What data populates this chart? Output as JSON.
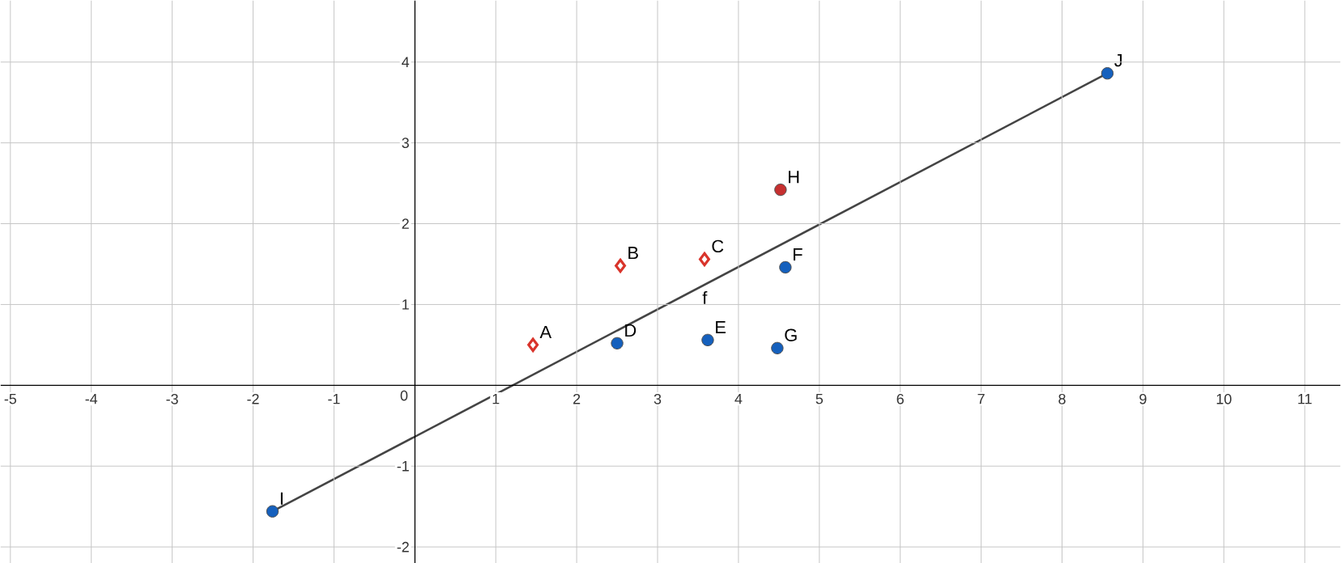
{
  "chart_data": {
    "type": "scatter",
    "xlim": [
      -5.12,
      11.44
    ],
    "ylim": [
      -2.2,
      4.76
    ],
    "xticks": [
      -5,
      -4,
      -3,
      -2,
      -1,
      0,
      1,
      2,
      3,
      4,
      5,
      6,
      7,
      8,
      9,
      10,
      11
    ],
    "yticks": [
      -2,
      -1,
      1,
      2,
      3,
      4
    ],
    "grid": true,
    "series": [
      {
        "marker": "diamond",
        "color": "#d9342b",
        "x": [
          1.46,
          2.54,
          3.58
        ],
        "values": [
          0.5,
          1.48,
          1.56
        ]
      },
      {
        "marker": "circle",
        "color": "#c63030",
        "x": [
          4.52
        ],
        "values": [
          2.42
        ]
      },
      {
        "marker": "circle",
        "color": "#1560bd",
        "x": [
          2.5,
          3.62,
          4.58,
          4.48,
          -1.76,
          8.56
        ],
        "values": [
          0.52,
          0.56,
          1.46,
          0.46,
          -1.56,
          3.86
        ]
      },
      {
        "type": "line",
        "name": "f",
        "marker": "none",
        "color": "#444444",
        "x": [
          -1.76,
          8.56
        ],
        "values": [
          -1.56,
          3.86
        ]
      }
    ],
    "annotations": [
      {
        "text": "A",
        "x": 1.46,
        "y": 0.5
      },
      {
        "text": "B",
        "x": 2.54,
        "y": 1.48
      },
      {
        "text": "C",
        "x": 3.58,
        "y": 1.56
      },
      {
        "text": "H",
        "x": 4.52,
        "y": 2.42
      },
      {
        "text": "D",
        "x": 2.5,
        "y": 0.52
      },
      {
        "text": "E",
        "x": 3.62,
        "y": 0.56
      },
      {
        "text": "F",
        "x": 4.58,
        "y": 1.46
      },
      {
        "text": "G",
        "x": 4.48,
        "y": 0.46
      },
      {
        "text": "I",
        "x": -1.76,
        "y": -1.56
      },
      {
        "text": "J",
        "x": 8.56,
        "y": 3.86
      }
    ]
  }
}
